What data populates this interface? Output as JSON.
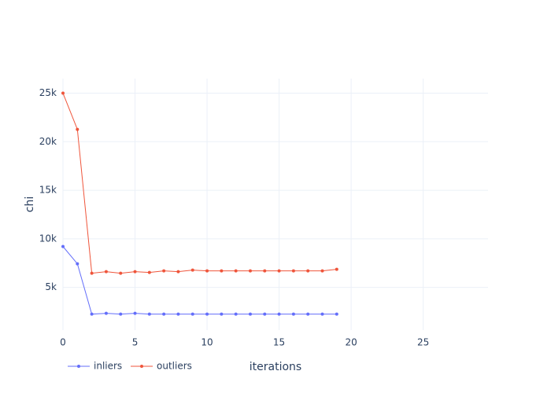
{
  "chart_data": {
    "type": "line",
    "x": [
      0,
      1,
      2,
      3,
      4,
      5,
      6,
      7,
      8,
      9,
      10,
      11,
      12,
      13,
      14,
      15,
      16,
      17,
      18,
      19
    ],
    "series": [
      {
        "name": "inliers",
        "color": "#636efa",
        "values": [
          9210,
          7430,
          2245,
          2330,
          2245,
          2330,
          2245,
          2245,
          2245,
          2245,
          2245,
          2245,
          2245,
          2245,
          2245,
          2245,
          2245,
          2245,
          2245,
          2245
        ]
      },
      {
        "name": "outliers",
        "color": "#ef553b",
        "values": [
          25000,
          21270,
          6460,
          6620,
          6460,
          6620,
          6540,
          6700,
          6620,
          6780,
          6700,
          6700,
          6700,
          6700,
          6700,
          6700,
          6700,
          6700,
          6700,
          6860
        ]
      }
    ],
    "xlabel": "iterations",
    "ylabel": "chi",
    "xlim": [
      0,
      29.5
    ],
    "xticks": [
      0,
      5,
      10,
      15,
      20,
      25
    ],
    "ylim": [
      600,
      26500
    ],
    "yticks": [
      {
        "value": 5000,
        "label": "5k"
      },
      {
        "value": 10000,
        "label": "10k"
      },
      {
        "value": 15000,
        "label": "15k"
      },
      {
        "value": 20000,
        "label": "20k"
      },
      {
        "value": 25000,
        "label": "25k"
      }
    ],
    "grid": true,
    "legend": "bottom-left"
  }
}
